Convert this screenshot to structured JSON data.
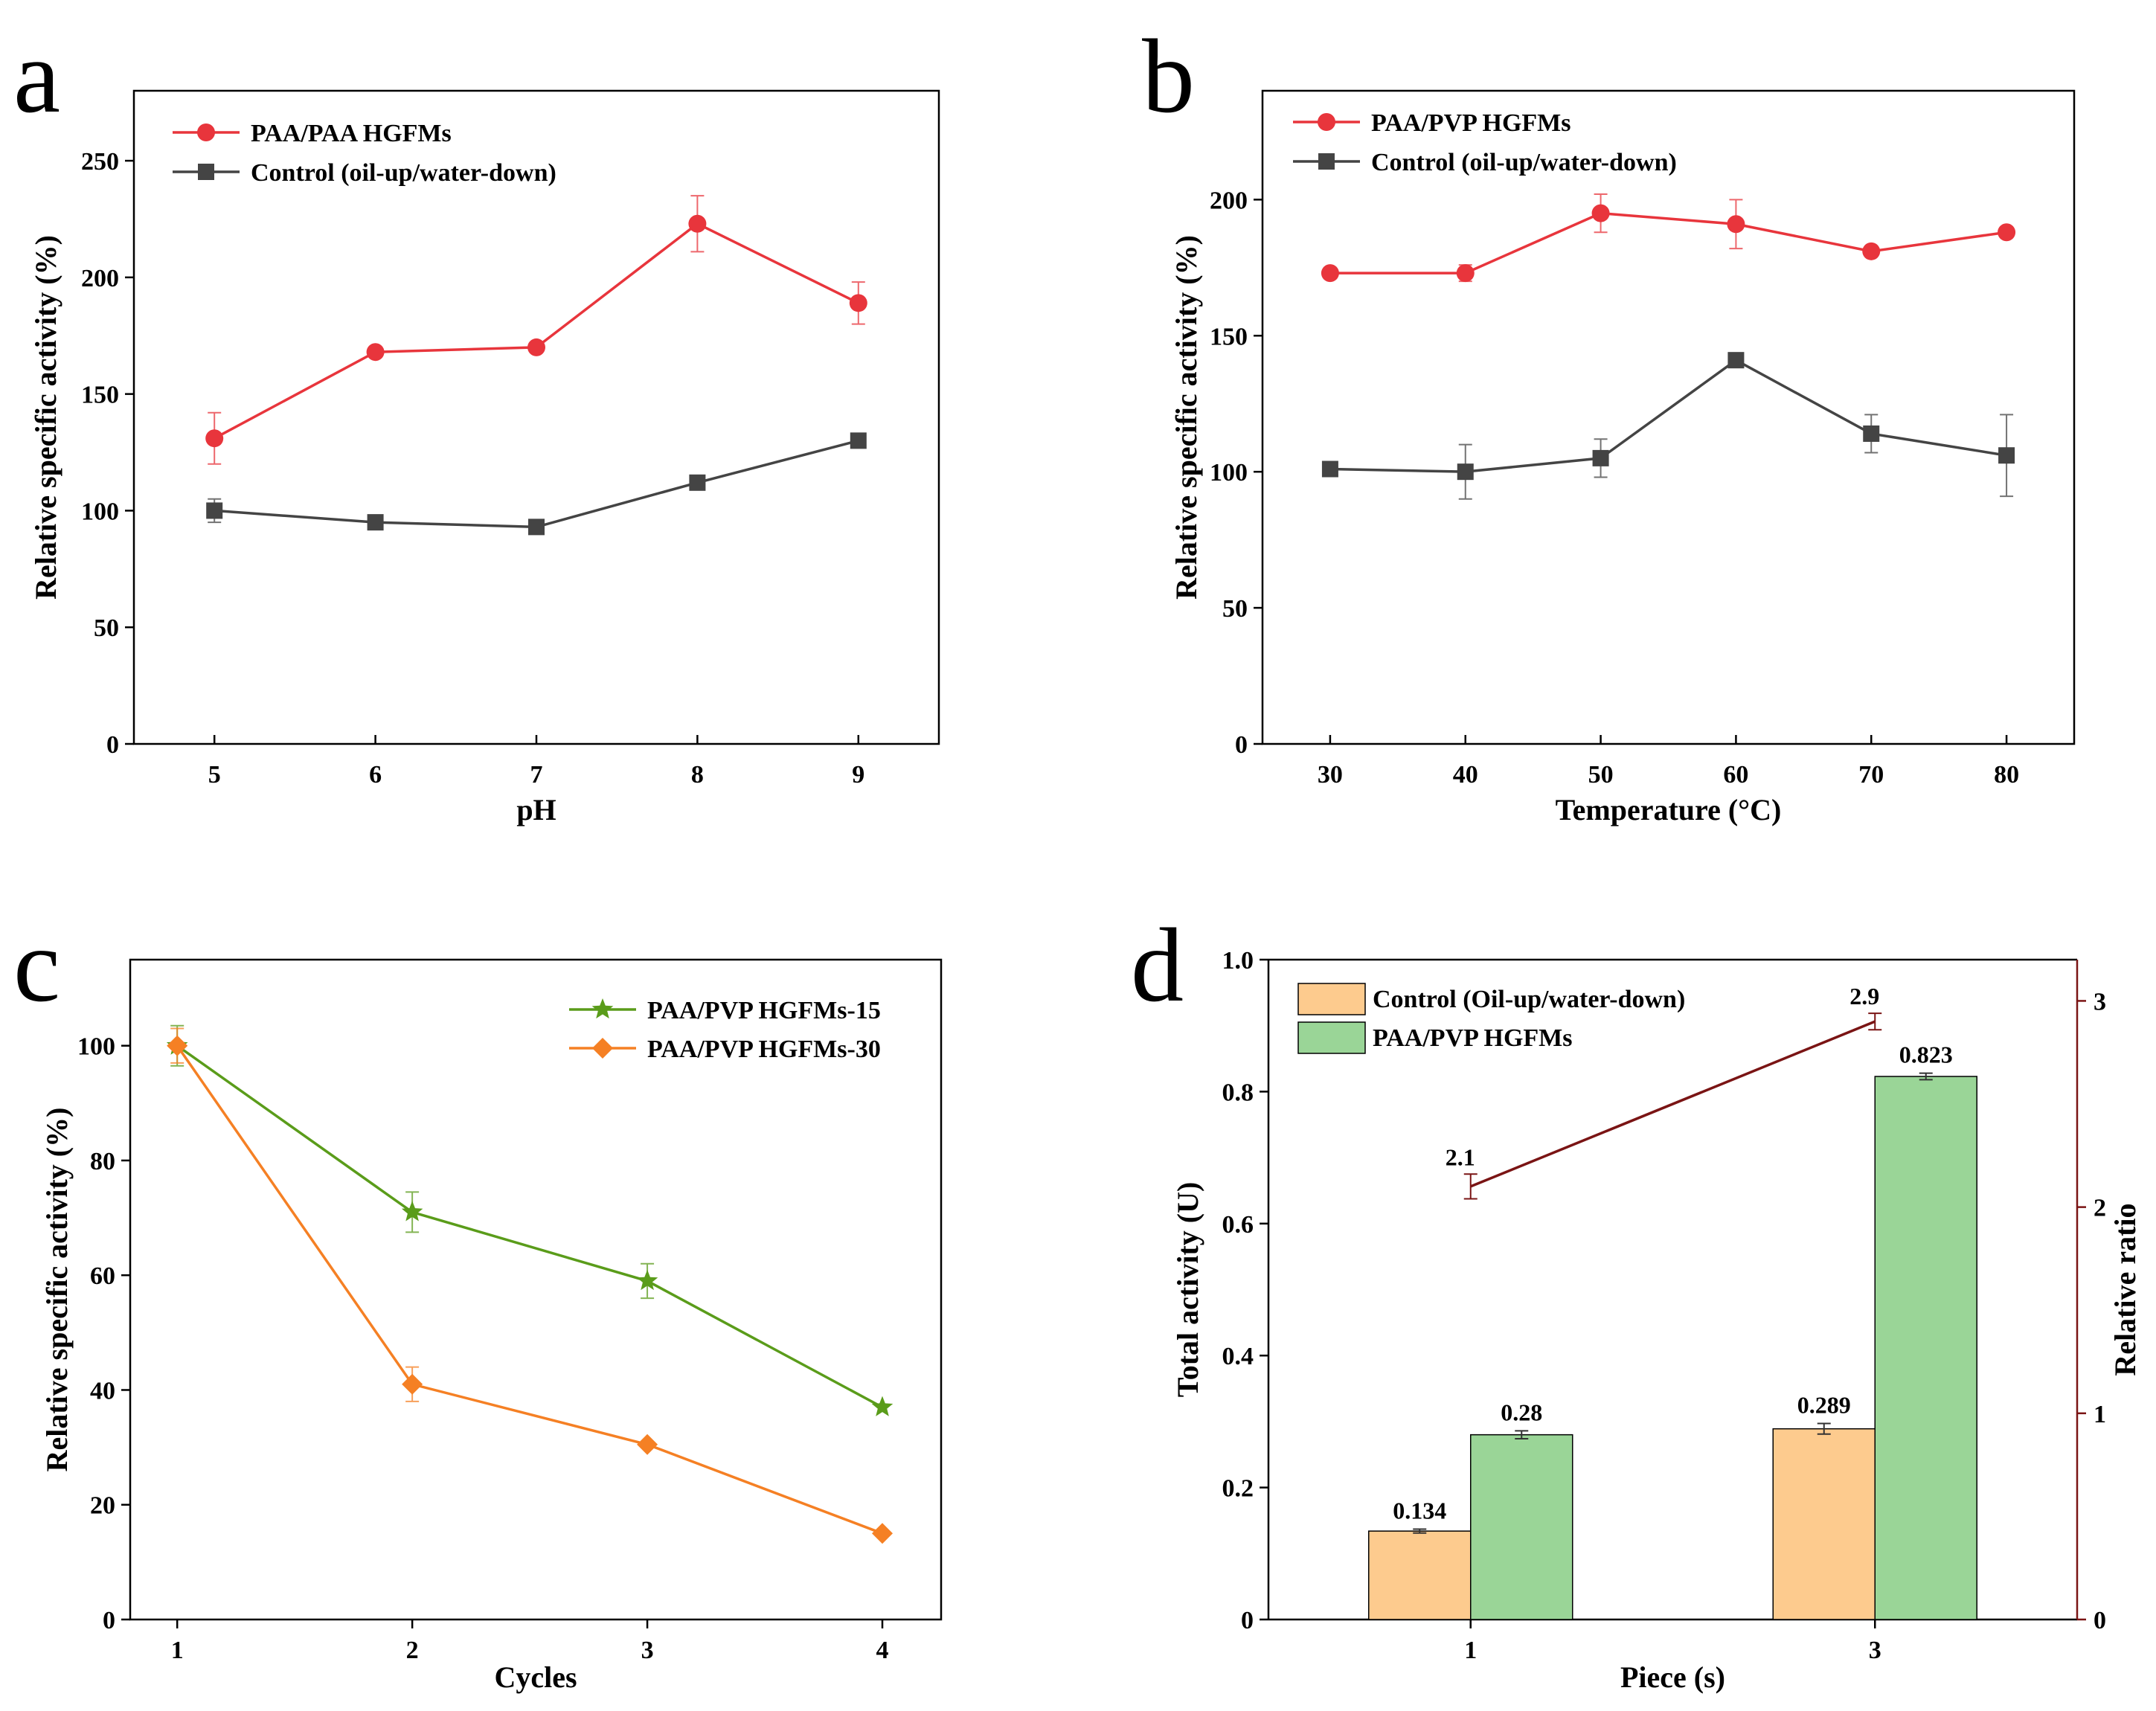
{
  "figure": {
    "panels": [
      "a",
      "b",
      "c",
      "d"
    ]
  },
  "chart_data": [
    {
      "id": "a",
      "type": "line",
      "title": "",
      "xlabel": "pH",
      "ylabel": "Relative specific activity (%)",
      "x": [
        5,
        6,
        7,
        8,
        9
      ],
      "xticks": [
        "5",
        "6",
        "7",
        "8",
        "9"
      ],
      "xlim": [
        4.5,
        9.5
      ],
      "ylim": [
        0,
        280
      ],
      "yticks": [
        0,
        50,
        100,
        150,
        200,
        250
      ],
      "grid": false,
      "legend_position": "top-left",
      "series": [
        {
          "name": "PAA/PAA HGFMs",
          "color": "#e8353c",
          "marker": "circle",
          "values": [
            131,
            168,
            170,
            223,
            189
          ],
          "errors": [
            11,
            0,
            0,
            12,
            9
          ]
        },
        {
          "name": "Control (oil-up/water-down)",
          "color": "#444444",
          "marker": "square",
          "values": [
            100,
            95,
            93,
            112,
            130
          ],
          "errors": [
            5,
            0,
            0,
            0,
            0
          ]
        }
      ]
    },
    {
      "id": "b",
      "type": "line",
      "title": "",
      "xlabel": "Temperature (°C)",
      "ylabel": "Relative specific activity (%)",
      "x": [
        30,
        40,
        50,
        60,
        70,
        80
      ],
      "xticks": [
        "30",
        "40",
        "50",
        "60",
        "70",
        "80"
      ],
      "xlim": [
        25,
        85
      ],
      "ylim": [
        0,
        240
      ],
      "yticks": [
        0,
        50,
        100,
        150,
        200
      ],
      "grid": false,
      "legend_position": "top-left",
      "series": [
        {
          "name": "PAA/PVP HGFMs",
          "color": "#e8353c",
          "marker": "circle",
          "values": [
            173,
            173,
            195,
            191,
            181,
            188
          ],
          "errors": [
            0,
            3,
            7,
            9,
            0,
            0
          ]
        },
        {
          "name": "Control (oil-up/water-down)",
          "color": "#444444",
          "marker": "square",
          "values": [
            101,
            100,
            105,
            141,
            114,
            106
          ],
          "errors": [
            0,
            10,
            7,
            0,
            7,
            15
          ]
        }
      ]
    },
    {
      "id": "c",
      "type": "line",
      "title": "",
      "xlabel": "Cycles",
      "ylabel": "Relative specific activity (%)",
      "x": [
        1,
        2,
        3,
        4
      ],
      "xticks": [
        "1",
        "2",
        "3",
        "4"
      ],
      "xlim": [
        0.8,
        4.25
      ],
      "ylim": [
        0,
        115
      ],
      "yticks": [
        0,
        20,
        40,
        60,
        80,
        100
      ],
      "grid": false,
      "legend_position": "top-right",
      "series": [
        {
          "name": "PAA/PVP HGFMs-15",
          "color": "#5a9c1a",
          "marker": "star",
          "values": [
            100,
            71,
            59,
            37
          ],
          "errors": [
            3.5,
            3.5,
            3,
            0
          ]
        },
        {
          "name": "PAA/PVP HGFMs-30",
          "color": "#f58024",
          "marker": "diamond",
          "values": [
            100,
            41,
            30.5,
            15
          ],
          "errors": [
            3,
            3,
            0,
            0
          ]
        }
      ]
    },
    {
      "id": "d",
      "type": "bar",
      "title": "",
      "xlabel": "Piece (s)",
      "ylabel": "Total activity (U)",
      "y2label": "Relative ratio",
      "categories": [
        "1",
        "3"
      ],
      "ylim": [
        0,
        1.0
      ],
      "yticks": [
        "0",
        "0.2",
        "0.4",
        "0.6",
        "0.8",
        "1.0"
      ],
      "y2lim": [
        0,
        3.2
      ],
      "y2ticks": [
        "0",
        "1",
        "2",
        "3"
      ],
      "grid": false,
      "legend_position": "top-left",
      "series": [
        {
          "name": "Control (Oil-up/water-down)",
          "color": "#fdcb8e",
          "values": [
            0.134,
            0.289
          ],
          "labels": [
            "0.134",
            "0.289"
          ],
          "errors": [
            0.003,
            0.008
          ]
        },
        {
          "name": "PAA/PVP HGFMs",
          "color": "#9ad597",
          "values": [
            0.28,
            0.823
          ],
          "labels": [
            "0.28",
            "0.823"
          ],
          "errors": [
            0.006,
            0.005
          ]
        }
      ],
      "ratio_line": {
        "color": "#7a1414",
        "values": [
          2.1,
          2.9
        ],
        "labels": [
          "2.1",
          "2.9"
        ],
        "errors": [
          0.06,
          0.04
        ]
      }
    }
  ]
}
